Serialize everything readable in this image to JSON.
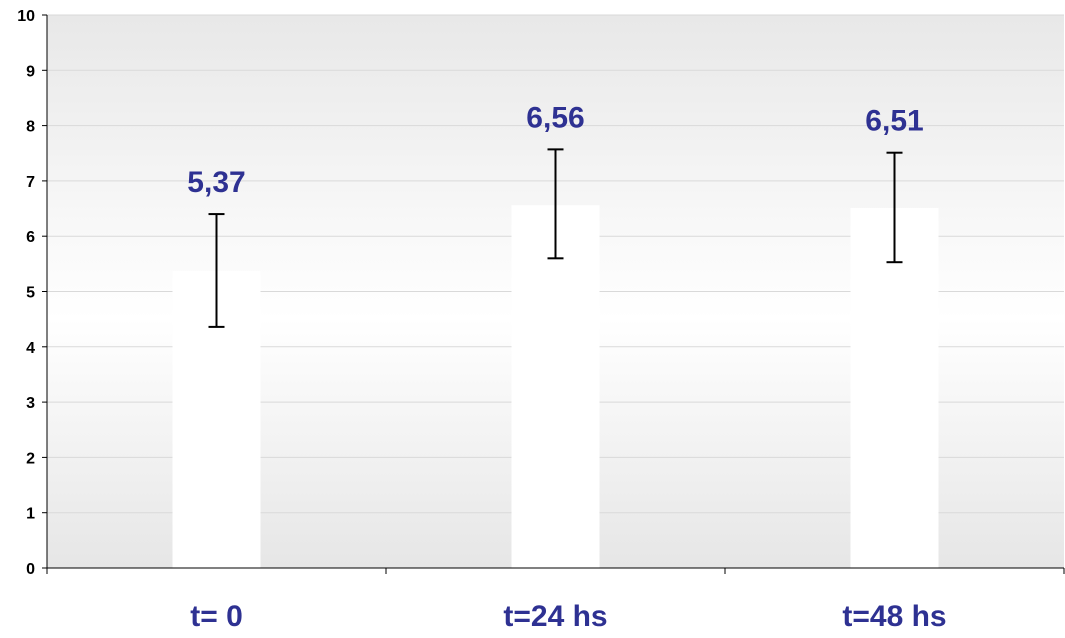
{
  "colors": {
    "bar_fill": "#ffffff",
    "label_color": "#2e3192",
    "axis_color": "#000000",
    "grid_color": "#d9d9d9",
    "plot_bg_top": "#e8e8e8",
    "plot_bg_mid": "#ffffff",
    "plot_bg_bottom": "#e6e6e6",
    "error_bar_color": "#000000"
  },
  "chart_data": {
    "type": "bar",
    "title": "",
    "xlabel": "",
    "ylabel": "",
    "categories": [
      "t= 0",
      "t=24 hs",
      "t=48 hs"
    ],
    "values": [
      5.37,
      6.56,
      6.51
    ],
    "value_labels": [
      "5,37",
      "6,56",
      "6,51"
    ],
    "error_bars": {
      "upper": [
        6.4,
        7.57,
        7.51
      ],
      "lower": [
        4.36,
        5.6,
        5.53
      ]
    },
    "ylim": [
      0,
      10
    ],
    "yticks": [
      "0",
      "1",
      "2",
      "3",
      "4",
      "5",
      "6",
      "7",
      "8",
      "9",
      "10"
    ],
    "grid": true,
    "legend": "none"
  }
}
